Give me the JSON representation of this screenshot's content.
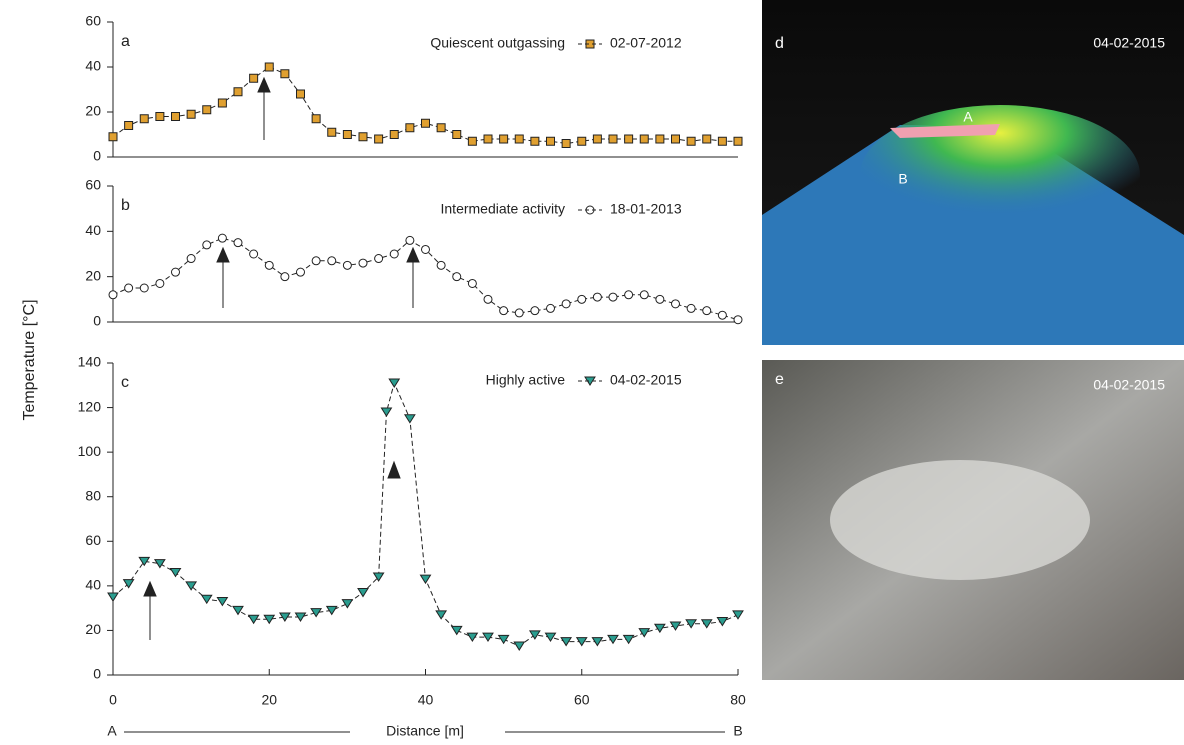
{
  "figure": {
    "y_label": "Temperature [°C]",
    "x_label": "Distance [m]",
    "x_start": "A",
    "x_end": "B"
  },
  "chart_data": [
    {
      "type": "line",
      "panel_label": "a",
      "subtitle": "Quiescent outgassing",
      "xlim": [
        0,
        80
      ],
      "ylim": [
        0,
        60
      ],
      "yticks": [
        0,
        20,
        40,
        60
      ],
      "series": [
        {
          "name": "02-07-2012",
          "color": "#e0a030",
          "marker": "square",
          "x": [
            0,
            2,
            4,
            6,
            8,
            10,
            12,
            14,
            16,
            18,
            20,
            22,
            24,
            26,
            28,
            30,
            32,
            34,
            36,
            38,
            40,
            42,
            44,
            46,
            48,
            50,
            52,
            54,
            56,
            58,
            60,
            62,
            64,
            66,
            68,
            70,
            72,
            74,
            76,
            78,
            80
          ],
          "values": [
            9,
            14,
            17,
            18,
            18,
            19,
            21,
            24,
            29,
            35,
            40,
            37,
            28,
            17,
            11,
            10,
            9,
            8,
            10,
            13,
            15,
            13,
            10,
            7,
            8,
            8,
            8,
            7,
            7,
            6,
            7,
            8,
            8,
            8,
            8,
            8,
            8,
            7,
            8,
            7,
            7
          ]
        }
      ]
    },
    {
      "type": "line",
      "panel_label": "b",
      "subtitle": "Intermediate activity",
      "xlim": [
        0,
        80
      ],
      "ylim": [
        0,
        60
      ],
      "yticks": [
        0,
        20,
        40,
        60
      ],
      "series": [
        {
          "name": "18-01-2013",
          "color": "#ffffff",
          "marker": "circle",
          "x": [
            0,
            2,
            4,
            6,
            8,
            10,
            12,
            14,
            16,
            18,
            20,
            22,
            24,
            26,
            28,
            30,
            32,
            34,
            36,
            38,
            40,
            42,
            44,
            46,
            48,
            50,
            52,
            54,
            56,
            58,
            60,
            62,
            64,
            66,
            68,
            70,
            72,
            74,
            76,
            78,
            80
          ],
          "values": [
            12,
            15,
            15,
            17,
            22,
            28,
            34,
            37,
            35,
            30,
            25,
            20,
            22,
            27,
            27,
            25,
            26,
            28,
            30,
            36,
            32,
            25,
            20,
            17,
            10,
            5,
            4,
            5,
            6,
            8,
            10,
            11,
            11,
            12,
            12,
            10,
            8,
            6,
            5,
            3,
            1
          ]
        }
      ]
    },
    {
      "type": "line",
      "panel_label": "c",
      "subtitle": "Highly active",
      "xlim": [
        0,
        80
      ],
      "ylim": [
        0,
        140
      ],
      "yticks": [
        0,
        20,
        40,
        60,
        80,
        100,
        120,
        140
      ],
      "xticks": [
        0,
        20,
        40,
        60,
        80
      ],
      "series": [
        {
          "name": "04-02-2015",
          "color": "#2a9d8f",
          "marker": "triangle-down",
          "x": [
            0,
            2,
            4,
            6,
            8,
            10,
            12,
            14,
            16,
            18,
            20,
            22,
            24,
            26,
            28,
            30,
            32,
            34,
            35,
            36,
            38,
            40,
            42,
            44,
            46,
            48,
            50,
            52,
            54,
            56,
            58,
            60,
            62,
            64,
            66,
            68,
            70,
            72,
            74,
            76,
            78,
            80
          ],
          "values": [
            35,
            41,
            51,
            50,
            46,
            40,
            34,
            33,
            29,
            25,
            25,
            26,
            26,
            28,
            29,
            32,
            37,
            44,
            118,
            131,
            115,
            43,
            27,
            20,
            17,
            17,
            16,
            13,
            18,
            17,
            15,
            15,
            15,
            16,
            16,
            19,
            21,
            22,
            23,
            23,
            24,
            27
          ]
        }
      ]
    }
  ],
  "images": [
    {
      "label": "d",
      "date": "04-02-2015",
      "points": [
        "A",
        "B"
      ]
    },
    {
      "label": "e",
      "date": "04-02-2015"
    }
  ]
}
